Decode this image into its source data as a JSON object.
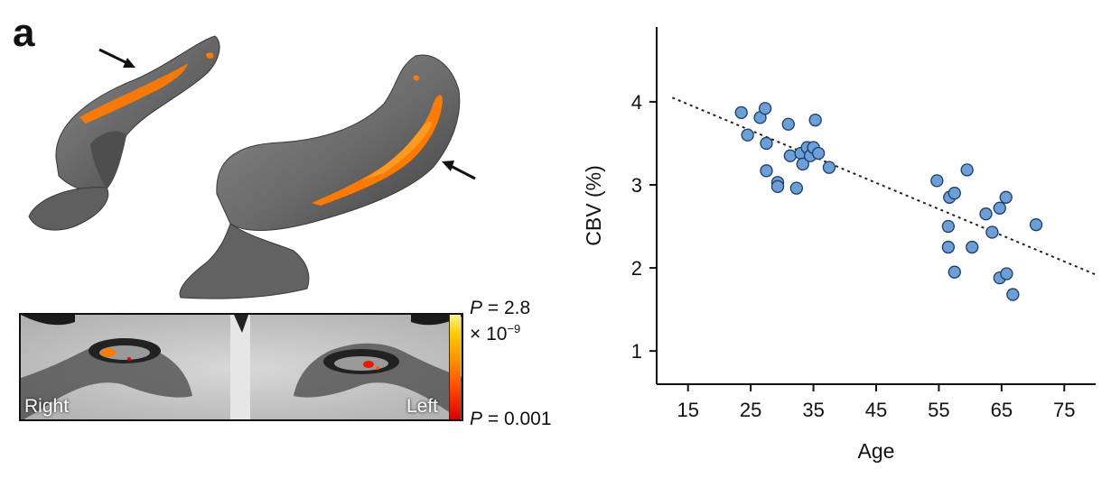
{
  "panel_label": "a",
  "brain_figure": {
    "slice_label_right": "Right",
    "slice_label_left": "Left",
    "colorbar_top_prefix": "P",
    "colorbar_top_value": "= 2.8",
    "colorbar_top_exponent_base": "× 10",
    "colorbar_top_exponent": "−9",
    "colorbar_bottom_prefix": "P",
    "colorbar_bottom_value": "= 0.001",
    "colors": {
      "surface": "#6f6f6f",
      "activation": "#ff7a00",
      "activation_hot": "#ff4a00"
    }
  },
  "chart_data": {
    "type": "scatter",
    "xlabel": "Age",
    "ylabel": "CBV (%)",
    "xlim": [
      10,
      80
    ],
    "ylim": [
      0.6,
      4.9
    ],
    "xticks": [
      15,
      25,
      35,
      45,
      55,
      65,
      75
    ],
    "yticks": [
      1,
      2,
      3,
      4
    ],
    "grid": false,
    "point_color": "#6b9fd8",
    "point_edge": "#1d3b66",
    "trendline": {
      "style": "dotted",
      "x": [
        12.5,
        80
      ],
      "y": [
        4.05,
        1.92
      ]
    },
    "points": [
      {
        "x": 23.5,
        "y": 3.87
      },
      {
        "x": 24.5,
        "y": 3.6
      },
      {
        "x": 26.5,
        "y": 3.81
      },
      {
        "x": 27.3,
        "y": 3.92
      },
      {
        "x": 27.5,
        "y": 3.5
      },
      {
        "x": 27.5,
        "y": 3.17
      },
      {
        "x": 29.3,
        "y": 3.03
      },
      {
        "x": 29.3,
        "y": 2.98
      },
      {
        "x": 31.0,
        "y": 3.73
      },
      {
        "x": 31.3,
        "y": 3.35
      },
      {
        "x": 32.3,
        "y": 2.96
      },
      {
        "x": 33.0,
        "y": 3.38
      },
      {
        "x": 33.3,
        "y": 3.25
      },
      {
        "x": 34.0,
        "y": 3.45
      },
      {
        "x": 34.5,
        "y": 3.35
      },
      {
        "x": 35.0,
        "y": 3.45
      },
      {
        "x": 35.3,
        "y": 3.78
      },
      {
        "x": 35.8,
        "y": 3.38
      },
      {
        "x": 37.5,
        "y": 3.21
      },
      {
        "x": 54.7,
        "y": 3.05
      },
      {
        "x": 56.7,
        "y": 2.85
      },
      {
        "x": 57.5,
        "y": 2.9
      },
      {
        "x": 56.5,
        "y": 2.5
      },
      {
        "x": 56.5,
        "y": 2.25
      },
      {
        "x": 57.5,
        "y": 1.95
      },
      {
        "x": 59.5,
        "y": 3.18
      },
      {
        "x": 60.3,
        "y": 2.25
      },
      {
        "x": 62.5,
        "y": 2.65
      },
      {
        "x": 63.5,
        "y": 2.43
      },
      {
        "x": 64.7,
        "y": 2.72
      },
      {
        "x": 65.7,
        "y": 2.85
      },
      {
        "x": 64.7,
        "y": 1.88
      },
      {
        "x": 65.8,
        "y": 1.93
      },
      {
        "x": 66.8,
        "y": 1.68
      },
      {
        "x": 70.5,
        "y": 2.52
      }
    ]
  }
}
